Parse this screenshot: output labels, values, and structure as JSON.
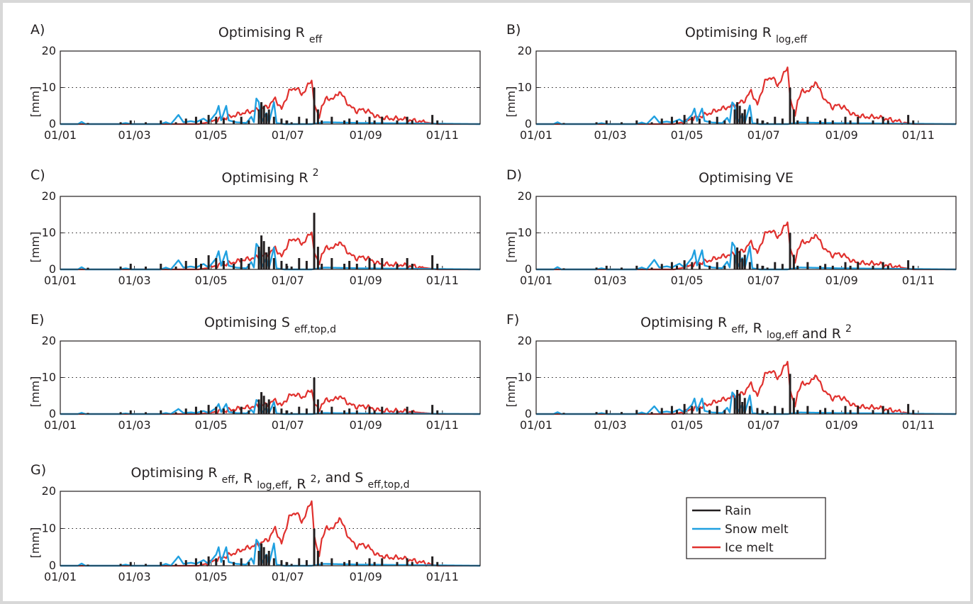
{
  "chart_data": {
    "type": "line",
    "panels": [
      {
        "letter": "A)",
        "title": [
          {
            "t": "Optimising R "
          },
          {
            "t": "eff",
            "sub": true
          }
        ],
        "ylabel": "[mm]",
        "ylim": [
          0,
          20
        ],
        "yticks": [
          0,
          10,
          20
        ],
        "xticks": [
          "01/01",
          "01/03",
          "01/05",
          "01/07",
          "01/09",
          "01/11"
        ],
        "snow_scale": 1.0,
        "ice_scale": 1.0,
        "rain_scale": 1.0
      },
      {
        "letter": "B)",
        "title": [
          {
            "t": "Optimising R "
          },
          {
            "t": "log,eff",
            "sub": true
          }
        ],
        "ylabel": "[mm]",
        "ylim": [
          0,
          20
        ],
        "yticks": [
          0,
          10,
          20
        ],
        "xticks": [
          "01/01",
          "01/03",
          "01/05",
          "01/07",
          "01/09",
          "01/11"
        ],
        "snow_scale": 0.85,
        "ice_scale": 1.3,
        "rain_scale": 1.0
      },
      {
        "letter": "C)",
        "title": [
          {
            "t": "Optimising R "
          },
          {
            "t": "2",
            "sup": true
          }
        ],
        "ylabel": "[mm]",
        "ylim": [
          0,
          20
        ],
        "yticks": [
          0,
          10,
          20
        ],
        "xticks": [
          "01/01",
          "01/03",
          "01/05",
          "01/07",
          "01/09",
          "01/11"
        ],
        "snow_scale": 1.0,
        "ice_scale": 0.85,
        "rain_scale": 1.55
      },
      {
        "letter": "D)",
        "title": [
          {
            "t": "Optimising VE"
          }
        ],
        "ylabel": "[mm]",
        "ylim": [
          0,
          20
        ],
        "yticks": [
          0,
          10,
          20
        ],
        "xticks": [
          "01/01",
          "01/03",
          "01/05",
          "01/07",
          "01/09",
          "01/11"
        ],
        "snow_scale": 1.05,
        "ice_scale": 1.08,
        "rain_scale": 1.0
      },
      {
        "letter": "E)",
        "title": [
          {
            "t": "Optimising S "
          },
          {
            "t": "eff,top,d",
            "sub": true
          }
        ],
        "ylabel": "[mm]",
        "ylim": [
          0,
          20
        ],
        "yticks": [
          0,
          10,
          20
        ],
        "xticks": [
          "01/01",
          "01/03",
          "01/05",
          "01/07",
          "01/09",
          "01/11"
        ],
        "snow_scale": 0.55,
        "ice_scale": 0.55,
        "rain_scale": 1.0
      },
      {
        "letter": "F)",
        "title": [
          {
            "t": "Optimising R "
          },
          {
            "t": "eff",
            "sub": true
          },
          {
            "t": ", R "
          },
          {
            "t": "log,eff",
            "sub": true
          },
          {
            "t": "  and R "
          },
          {
            "t": "2",
            "sup": true
          }
        ],
        "ylabel": "[mm]",
        "ylim": [
          0,
          20
        ],
        "yticks": [
          0,
          10,
          20
        ],
        "xticks": [
          "01/01",
          "01/03",
          "01/05",
          "01/07",
          "01/09",
          "01/11"
        ],
        "snow_scale": 0.85,
        "ice_scale": 1.2,
        "rain_scale": 1.1
      },
      {
        "letter": "G)",
        "title": [
          {
            "t": "Optimising R "
          },
          {
            "t": "eff",
            "sub": true
          },
          {
            "t": ", R "
          },
          {
            "t": "log,eff",
            "sub": true
          },
          {
            "t": ", R "
          },
          {
            "t": "2",
            "sup": true
          },
          {
            "t": ", and S "
          },
          {
            "t": "eff,top,d",
            "sub": true
          }
        ],
        "ylabel": "[mm]",
        "ylim": [
          0,
          20
        ],
        "yticks": [
          0,
          10,
          20
        ],
        "xticks": [
          "01/01",
          "01/03",
          "01/05",
          "01/07",
          "01/09",
          "01/11"
        ],
        "snow_scale": 1.0,
        "ice_scale": 1.45,
        "rain_scale": 1.0
      }
    ],
    "ice_profile": [
      [
        0,
        0
      ],
      [
        110,
        0
      ],
      [
        118,
        0.5
      ],
      [
        125,
        1.2
      ],
      [
        135,
        2
      ],
      [
        145,
        3
      ],
      [
        158,
        4
      ],
      [
        166,
        5
      ],
      [
        171,
        7
      ],
      [
        176,
        4
      ],
      [
        182,
        9
      ],
      [
        188,
        10
      ],
      [
        192,
        8
      ],
      [
        196,
        10
      ],
      [
        200,
        12
      ],
      [
        202,
        6
      ],
      [
        204,
        3
      ],
      [
        206,
        2
      ],
      [
        208,
        5
      ],
      [
        212,
        7
      ],
      [
        218,
        7
      ],
      [
        222,
        9
      ],
      [
        226,
        7
      ],
      [
        230,
        5
      ],
      [
        236,
        3.5
      ],
      [
        240,
        4
      ],
      [
        245,
        3.5
      ],
      [
        252,
        2
      ],
      [
        262,
        1.5
      ],
      [
        270,
        1.5
      ],
      [
        280,
        1
      ],
      [
        290,
        0.5
      ],
      [
        300,
        0
      ],
      [
        334,
        0
      ]
    ],
    "snow_profile": [
      [
        0,
        0
      ],
      [
        14,
        0
      ],
      [
        17,
        0.6
      ],
      [
        20,
        0
      ],
      [
        48,
        0
      ],
      [
        52,
        0.3
      ],
      [
        56,
        0
      ],
      [
        80,
        0
      ],
      [
        84,
        0.5
      ],
      [
        88,
        0
      ],
      [
        94,
        2.5
      ],
      [
        98,
        0.5
      ],
      [
        104,
        0.8
      ],
      [
        108,
        0.5
      ],
      [
        114,
        1.5
      ],
      [
        118,
        0.5
      ],
      [
        124,
        3
      ],
      [
        126,
        5
      ],
      [
        128,
        1
      ],
      [
        130,
        3
      ],
      [
        132,
        5
      ],
      [
        134,
        1
      ],
      [
        140,
        0.5
      ],
      [
        148,
        0.3
      ],
      [
        152,
        2
      ],
      [
        154,
        0.5
      ],
      [
        156,
        7
      ],
      [
        158,
        6
      ],
      [
        160,
        0.5
      ],
      [
        164,
        3
      ],
      [
        166,
        0.3
      ],
      [
        170,
        6
      ],
      [
        172,
        0.3
      ],
      [
        178,
        0
      ],
      [
        200,
        0
      ],
      [
        210,
        0.5
      ],
      [
        240,
        0.3
      ],
      [
        334,
        0
      ]
    ],
    "rain_bars": [
      [
        22,
        0.3
      ],
      [
        48,
        0.5
      ],
      [
        56,
        1
      ],
      [
        68,
        0.5
      ],
      [
        80,
        1
      ],
      [
        92,
        0.5
      ],
      [
        100,
        1.5
      ],
      [
        108,
        2
      ],
      [
        112,
        1
      ],
      [
        118,
        2.5
      ],
      [
        124,
        2
      ],
      [
        130,
        1.5
      ],
      [
        138,
        1
      ],
      [
        144,
        2
      ],
      [
        150,
        1
      ],
      [
        158,
        4
      ],
      [
        160,
        6
      ],
      [
        162,
        5
      ],
      [
        164,
        3
      ],
      [
        166,
        4
      ],
      [
        170,
        2
      ],
      [
        176,
        1.5
      ],
      [
        180,
        1
      ],
      [
        184,
        0.5
      ],
      [
        190,
        2
      ],
      [
        196,
        1.5
      ],
      [
        202,
        10
      ],
      [
        205,
        4
      ],
      [
        208,
        1
      ],
      [
        216,
        2
      ],
      [
        226,
        1
      ],
      [
        230,
        1.5
      ],
      [
        236,
        1
      ],
      [
        246,
        2
      ],
      [
        250,
        1
      ],
      [
        256,
        2
      ],
      [
        268,
        1
      ],
      [
        276,
        2
      ],
      [
        280,
        1
      ],
      [
        296,
        2.5
      ],
      [
        300,
        1
      ]
    ],
    "legend": [
      {
        "label": "Rain",
        "color": "#231f20"
      },
      {
        "label": "Snow melt",
        "color": "#20a0e0"
      },
      {
        "label": "Ice melt",
        "color": "#e0312e"
      }
    ]
  }
}
